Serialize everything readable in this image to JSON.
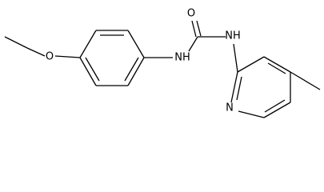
{
  "atoms": {
    "ether_oxygen": "O",
    "amide_nh_left": "NH",
    "carbonyl_oxygen": "O",
    "amide_nh_right": "NH",
    "pyridine_nitrogen": "N"
  }
}
